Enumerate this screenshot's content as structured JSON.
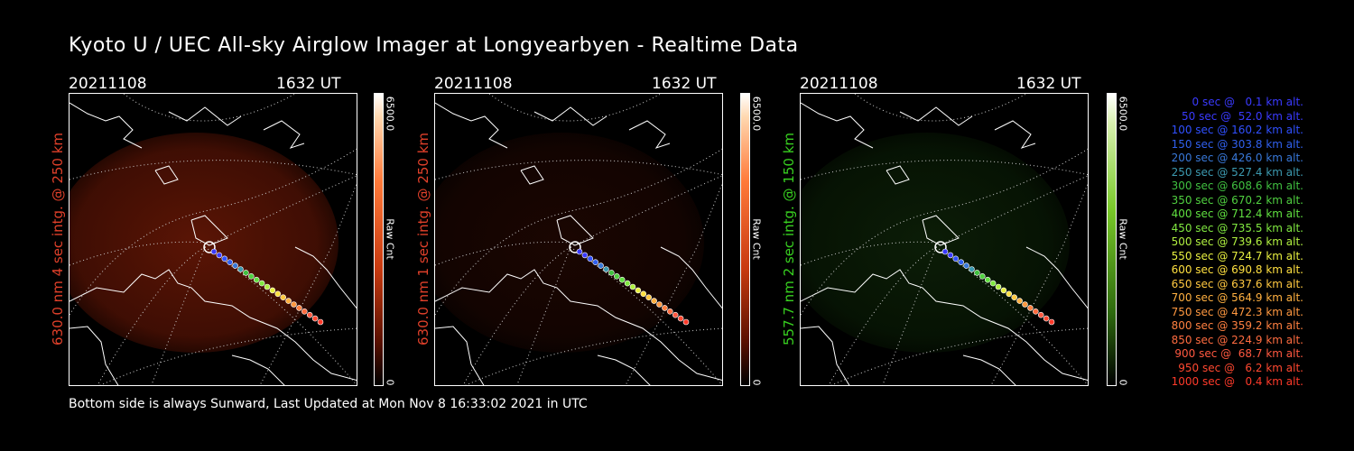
{
  "title": "Kyoto U / UEC All-sky Airglow Imager at Longyearbyen - Realtime Data",
  "footer": "Bottom side is always Sunward, Last Updated at Mon Nov  8 16:33:02 2021 in UTC",
  "panels": [
    {
      "date": "20211108",
      "time": "1632 UT",
      "ylabel": "630.0 nm 4 sec intg. @ 250 km",
      "label_color": "#e0402a",
      "cbar_max": "6500.0",
      "cbar_min": "0",
      "cbar_unit": "Raw Cnt",
      "scheme": "red",
      "glow": 0.85
    },
    {
      "date": "20211108",
      "time": "1632 UT",
      "ylabel": "630.0 nm 1 sec intg. @ 250 km",
      "label_color": "#e0402a",
      "cbar_max": "6500.0",
      "cbar_min": "0",
      "cbar_unit": "Raw Cnt",
      "scheme": "red",
      "glow": 0.25
    },
    {
      "date": "20211108",
      "time": "1632 UT",
      "ylabel": "557.7 nm 2 sec intg. @ 150 km",
      "label_color": "#38d020",
      "cbar_max": "6500.0",
      "cbar_min": "0",
      "cbar_unit": "Raw Cnt",
      "scheme": "green",
      "glow": 0.45
    }
  ],
  "legend": [
    {
      "text": "0 sec @   0.1 km alt.",
      "color": "#3a3aff"
    },
    {
      "text": "50 sec @  52.0 km alt.",
      "color": "#3a3aff"
    },
    {
      "text": "100 sec @ 160.2 km alt.",
      "color": "#3050ff"
    },
    {
      "text": "150 sec @ 303.8 km alt.",
      "color": "#3060ee"
    },
    {
      "text": "200 sec @ 426.0 km alt.",
      "color": "#3878d8"
    },
    {
      "text": "250 sec @ 527.4 km alt.",
      "color": "#3c9ab0"
    },
    {
      "text": "300 sec @ 608.6 km alt.",
      "color": "#40c040"
    },
    {
      "text": "350 sec @ 670.2 km alt.",
      "color": "#50d040"
    },
    {
      "text": "400 sec @ 712.4 km alt.",
      "color": "#60e040"
    },
    {
      "text": "450 sec @ 735.5 km alt.",
      "color": "#80e840"
    },
    {
      "text": "500 sec @ 739.6 km alt.",
      "color": "#b0f040"
    },
    {
      "text": "550 sec @ 724.7 km alt.",
      "color": "#e8f040"
    },
    {
      "text": "600 sec @ 690.8 km alt.",
      "color": "#ffe040"
    },
    {
      "text": "650 sec @ 637.6 km alt.",
      "color": "#ffc840"
    },
    {
      "text": "700 sec @ 564.9 km alt.",
      "color": "#ffb040"
    },
    {
      "text": "750 sec @ 472.3 km alt.",
      "color": "#ff9840"
    },
    {
      "text": "800 sec @ 359.2 km alt.",
      "color": "#ff8040"
    },
    {
      "text": "850 sec @ 224.9 km alt.",
      "color": "#ff6c40"
    },
    {
      "text": "900 sec @  68.7 km alt.",
      "color": "#ff5840"
    },
    {
      "text": "950 sec @   6.2 km alt.",
      "color": "#ff4830"
    },
    {
      "text": "1000 sec @   0.4 km alt.",
      "color": "#ff3a2a"
    }
  ]
}
